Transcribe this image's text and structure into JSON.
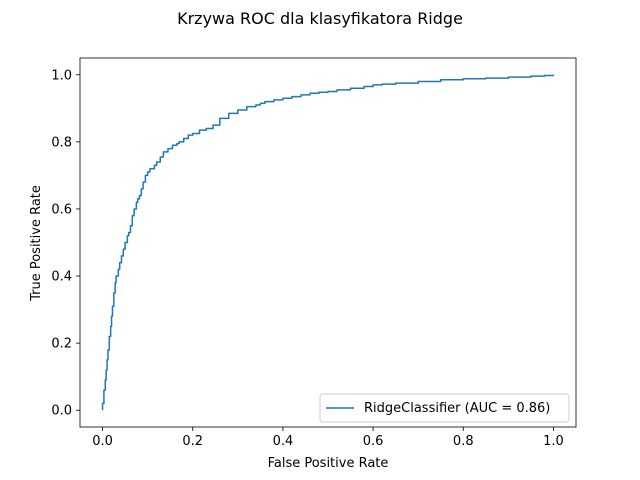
{
  "chart_data": {
    "type": "line",
    "title": "Krzywa ROC dla klasyfikatora Ridge",
    "xlabel": "False Positive Rate",
    "ylabel": "True Positive Rate",
    "xlim": [
      -0.05,
      1.05
    ],
    "ylim": [
      -0.05,
      1.05
    ],
    "x_ticks": [
      0.0,
      0.2,
      0.4,
      0.6,
      0.8,
      1.0
    ],
    "x_tick_labels": [
      "0.0",
      "0.2",
      "0.4",
      "0.6",
      "0.8",
      "1.0"
    ],
    "y_ticks": [
      0.0,
      0.2,
      0.4,
      0.6,
      0.8,
      1.0
    ],
    "y_tick_labels": [
      "0.0",
      "0.2",
      "0.4",
      "0.6",
      "0.8",
      "1.0"
    ],
    "grid": false,
    "legend_position": "lower-right",
    "series": [
      {
        "name": "RidgeClassifier (AUC = 0.86)",
        "color": "#1f77b4",
        "x": [
          0.0,
          0.0,
          0.003,
          0.006,
          0.008,
          0.01,
          0.012,
          0.015,
          0.018,
          0.02,
          0.022,
          0.025,
          0.028,
          0.03,
          0.035,
          0.038,
          0.042,
          0.046,
          0.05,
          0.055,
          0.058,
          0.062,
          0.066,
          0.07,
          0.075,
          0.078,
          0.082,
          0.086,
          0.09,
          0.095,
          0.1,
          0.105,
          0.11,
          0.115,
          0.12,
          0.128,
          0.135,
          0.145,
          0.155,
          0.165,
          0.17,
          0.18,
          0.19,
          0.2,
          0.215,
          0.23,
          0.245,
          0.26,
          0.28,
          0.3,
          0.32,
          0.34,
          0.35,
          0.36,
          0.38,
          0.4,
          0.42,
          0.44,
          0.46,
          0.48,
          0.5,
          0.52,
          0.55,
          0.58,
          0.6,
          0.62,
          0.65,
          0.7,
          0.75,
          0.8,
          0.85,
          0.9,
          0.95,
          0.98,
          1.0
        ],
        "y": [
          0.0,
          0.02,
          0.06,
          0.09,
          0.12,
          0.15,
          0.18,
          0.22,
          0.25,
          0.28,
          0.31,
          0.35,
          0.38,
          0.4,
          0.42,
          0.44,
          0.46,
          0.48,
          0.5,
          0.52,
          0.53,
          0.55,
          0.58,
          0.6,
          0.62,
          0.63,
          0.64,
          0.66,
          0.68,
          0.7,
          0.71,
          0.72,
          0.72,
          0.73,
          0.74,
          0.755,
          0.77,
          0.78,
          0.79,
          0.795,
          0.8,
          0.81,
          0.82,
          0.825,
          0.835,
          0.84,
          0.85,
          0.87,
          0.885,
          0.895,
          0.905,
          0.91,
          0.915,
          0.92,
          0.925,
          0.93,
          0.935,
          0.94,
          0.945,
          0.948,
          0.95,
          0.955,
          0.96,
          0.965,
          0.97,
          0.972,
          0.975,
          0.98,
          0.985,
          0.988,
          0.99,
          0.993,
          0.996,
          0.998,
          1.0
        ]
      }
    ]
  }
}
